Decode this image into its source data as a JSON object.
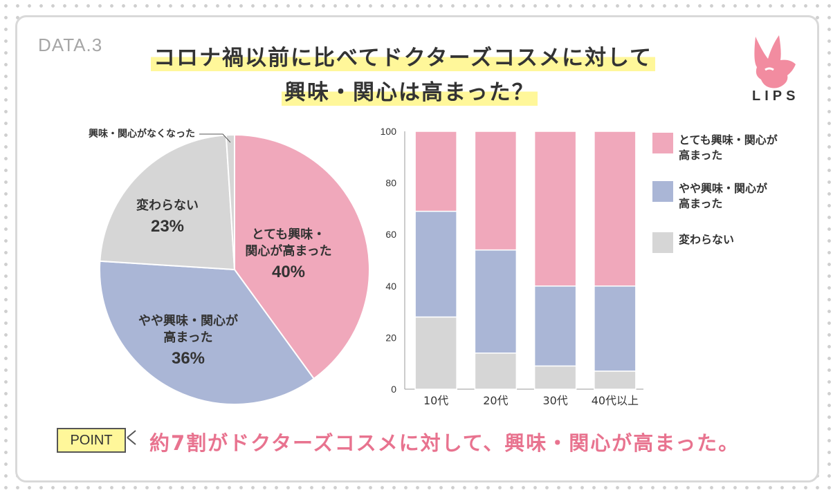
{
  "header": {
    "data_label": "DATA.3",
    "title_line1": "コロナ禍以前に比べてドクターズコスメに対して",
    "title_line2": "興味・関心は高まった？"
  },
  "brand": {
    "name": "LIPS",
    "color": "#f28ca0"
  },
  "colors": {
    "pink": "#f0a8bb",
    "blue": "#aab6d6",
    "gray": "#d6d6d6",
    "accent_text": "#e8738f",
    "highlight": "#fff79a"
  },
  "chart_data": [
    {
      "type": "pie",
      "slices": [
        {
          "label": "とても興味・関心が高まった",
          "label_lines": [
            "とても興味・",
            "関心が高まった"
          ],
          "value": 40,
          "value_label": "40%",
          "color": "#f0a8bb"
        },
        {
          "label": "やや興味・関心が高まった",
          "label_lines": [
            "やや興味・関心が",
            "高まった"
          ],
          "value": 36,
          "value_label": "36%",
          "color": "#aab6d6"
        },
        {
          "label": "変わらない",
          "label_lines": [
            "変わらない"
          ],
          "value": 23,
          "value_label": "23%",
          "color": "#d6d6d6"
        },
        {
          "label": "興味・関心がなくなった",
          "label_lines": [
            "興味・関心がなくなった"
          ],
          "value": 1,
          "value_label": "",
          "color": "#d6d6d6"
        }
      ]
    },
    {
      "type": "bar",
      "stacked": true,
      "categories": [
        "10代",
        "20代",
        "30代",
        "40代以上"
      ],
      "series": [
        {
          "name": "変わらない",
          "values": [
            28,
            14,
            9,
            7
          ],
          "color": "#d6d6d6"
        },
        {
          "name": "やや興味・関心が高まった",
          "values": [
            41,
            40,
            31,
            33
          ],
          "color": "#aab6d6"
        },
        {
          "name": "とても興味・関心が高まった",
          "values": [
            31,
            46,
            60,
            60
          ],
          "color": "#f0a8bb"
        }
      ],
      "ylim": [
        0,
        100
      ],
      "yticks": [
        "0",
        "20",
        "40",
        "60",
        "80",
        "100"
      ],
      "legend": [
        {
          "text": "とても興味・関心が高まった",
          "lines": [
            "とても興味・関心が",
            "高まった"
          ],
          "color": "#f0a8bb"
        },
        {
          "text": "やや興味・関心が高まった",
          "lines": [
            "やや興味・関心が",
            "高まった"
          ],
          "color": "#aab6d6"
        },
        {
          "text": "変わらない",
          "lines": [
            "変わらない"
          ],
          "color": "#d6d6d6"
        }
      ],
      "legend_position": "right"
    }
  ],
  "point": {
    "label": "POINT",
    "text": "約7割がドクターズコスメに対して、興味・関心が高まった。"
  }
}
